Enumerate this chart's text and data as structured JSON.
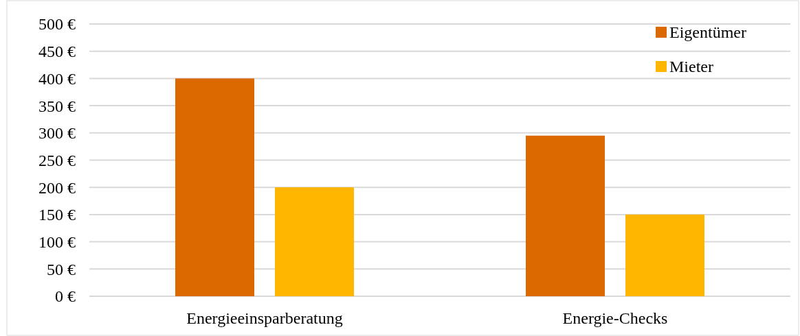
{
  "chart_data": {
    "type": "bar",
    "categories": [
      "Energieeinsparberatung",
      "Energie-Checks"
    ],
    "series": [
      {
        "name": "Eigentümer",
        "color": "#dc6900",
        "values": [
          400,
          295
        ]
      },
      {
        "name": "Mieter",
        "color": "#ffb600",
        "values": [
          200,
          150
        ]
      }
    ],
    "ylim": [
      0,
      500
    ],
    "yticks": [
      {
        "value": 0,
        "label": "0 €"
      },
      {
        "value": 50,
        "label": "50 €"
      },
      {
        "value": 100,
        "label": "100 €"
      },
      {
        "value": 150,
        "label": "150 €"
      },
      {
        "value": 200,
        "label": "200 €"
      },
      {
        "value": 250,
        "label": "250 €"
      },
      {
        "value": 300,
        "label": "300 €"
      },
      {
        "value": 350,
        "label": "350 €"
      },
      {
        "value": 400,
        "label": "400 €"
      },
      {
        "value": 450,
        "label": "450 €"
      },
      {
        "value": 500,
        "label": "500 €"
      }
    ],
    "grid": "y",
    "legend": "top right"
  }
}
